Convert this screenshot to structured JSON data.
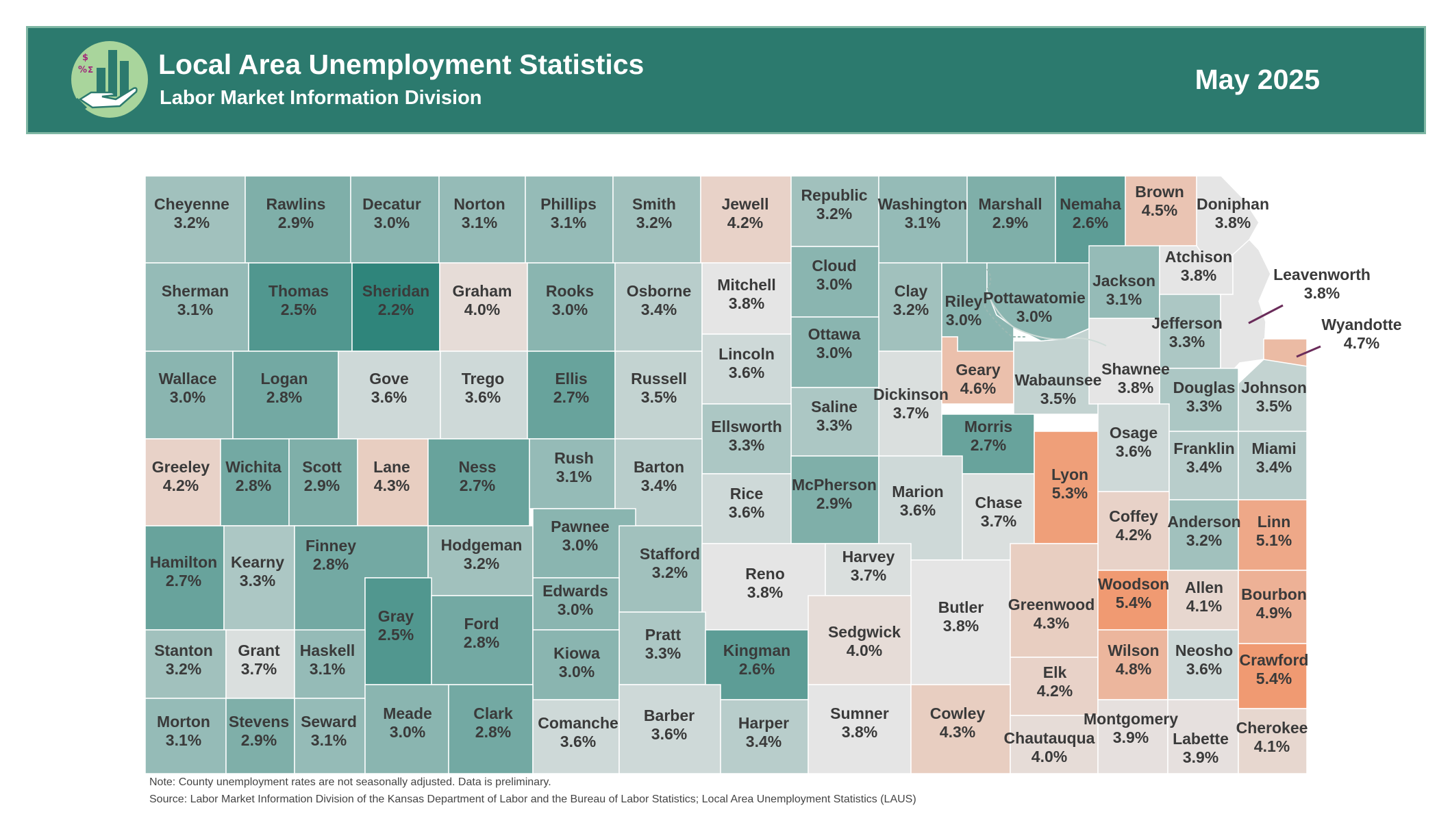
{
  "header": {
    "title": "Local Area Unemployment Statistics",
    "subtitle": "Labor Market Information Division",
    "period": "May 2025",
    "logo_icon": "money-hand-bar-chart-icon",
    "colors": {
      "banner": "#2c7a6e",
      "banner_border": "#7fb7a4",
      "logo_circle": "#a9d59c"
    }
  },
  "map": {
    "state": "Kansas",
    "value_unit": "%",
    "color_scale": {
      "low": "#2f857b",
      "mid": "#e5e5e5",
      "high": "#f09a72",
      "min": 2.2,
      "mid_value": 3.8,
      "max": 5.4
    },
    "counties": [
      {
        "name": "Cheyenne",
        "rate": "3.2%"
      },
      {
        "name": "Rawlins",
        "rate": "2.9%"
      },
      {
        "name": "Decatur",
        "rate": "3.0%"
      },
      {
        "name": "Norton",
        "rate": "3.1%"
      },
      {
        "name": "Phillips",
        "rate": "3.1%"
      },
      {
        "name": "Smith",
        "rate": "3.2%"
      },
      {
        "name": "Jewell",
        "rate": "4.2%"
      },
      {
        "name": "Republic",
        "rate": "3.2%"
      },
      {
        "name": "Washington",
        "rate": "3.1%"
      },
      {
        "name": "Marshall",
        "rate": "2.9%"
      },
      {
        "name": "Nemaha",
        "rate": "2.6%"
      },
      {
        "name": "Brown",
        "rate": "4.5%"
      },
      {
        "name": "Doniphan",
        "rate": "3.8%"
      },
      {
        "name": "Sherman",
        "rate": "3.1%"
      },
      {
        "name": "Thomas",
        "rate": "2.5%"
      },
      {
        "name": "Sheridan",
        "rate": "2.2%"
      },
      {
        "name": "Graham",
        "rate": "4.0%"
      },
      {
        "name": "Rooks",
        "rate": "3.0%"
      },
      {
        "name": "Osborne",
        "rate": "3.4%"
      },
      {
        "name": "Mitchell",
        "rate": "3.8%"
      },
      {
        "name": "Cloud",
        "rate": "3.0%"
      },
      {
        "name": "Clay",
        "rate": "3.2%"
      },
      {
        "name": "Riley",
        "rate": "3.0%"
      },
      {
        "name": "Pottawatomie",
        "rate": "3.0%"
      },
      {
        "name": "Jackson",
        "rate": "3.1%"
      },
      {
        "name": "Atchison",
        "rate": "3.8%"
      },
      {
        "name": "Jefferson",
        "rate": "3.3%"
      },
      {
        "name": "Leavenworth",
        "rate": "3.8%"
      },
      {
        "name": "Wyandotte",
        "rate": "4.7%"
      },
      {
        "name": "Wallace",
        "rate": "3.0%"
      },
      {
        "name": "Logan",
        "rate": "2.8%"
      },
      {
        "name": "Gove",
        "rate": "3.6%"
      },
      {
        "name": "Trego",
        "rate": "3.6%"
      },
      {
        "name": "Ellis",
        "rate": "2.7%"
      },
      {
        "name": "Russell",
        "rate": "3.5%"
      },
      {
        "name": "Lincoln",
        "rate": "3.6%"
      },
      {
        "name": "Ottawa",
        "rate": "3.0%"
      },
      {
        "name": "Dickinson",
        "rate": "3.7%"
      },
      {
        "name": "Geary",
        "rate": "4.6%"
      },
      {
        "name": "Wabaunsee",
        "rate": "3.5%"
      },
      {
        "name": "Shawnee",
        "rate": "3.8%"
      },
      {
        "name": "Douglas",
        "rate": "3.3%"
      },
      {
        "name": "Johnson",
        "rate": "3.5%"
      },
      {
        "name": "Saline",
        "rate": "3.3%"
      },
      {
        "name": "Ellsworth",
        "rate": "3.3%"
      },
      {
        "name": "Morris",
        "rate": "2.7%"
      },
      {
        "name": "Greeley",
        "rate": "4.2%"
      },
      {
        "name": "Wichita",
        "rate": "2.8%"
      },
      {
        "name": "Scott",
        "rate": "2.9%"
      },
      {
        "name": "Lane",
        "rate": "4.3%"
      },
      {
        "name": "Ness",
        "rate": "2.7%"
      },
      {
        "name": "Rush",
        "rate": "3.1%"
      },
      {
        "name": "Barton",
        "rate": "3.4%"
      },
      {
        "name": "Rice",
        "rate": "3.6%"
      },
      {
        "name": "McPherson",
        "rate": "2.9%"
      },
      {
        "name": "Marion",
        "rate": "3.6%"
      },
      {
        "name": "Chase",
        "rate": "3.7%"
      },
      {
        "name": "Lyon",
        "rate": "5.3%"
      },
      {
        "name": "Osage",
        "rate": "3.6%"
      },
      {
        "name": "Franklin",
        "rate": "3.4%"
      },
      {
        "name": "Miami",
        "rate": "3.4%"
      },
      {
        "name": "Hamilton",
        "rate": "2.7%"
      },
      {
        "name": "Kearny",
        "rate": "3.3%"
      },
      {
        "name": "Finney",
        "rate": "2.8%"
      },
      {
        "name": "Hodgeman",
        "rate": "3.2%"
      },
      {
        "name": "Pawnee",
        "rate": "3.0%"
      },
      {
        "name": "Stafford",
        "rate": "3.2%"
      },
      {
        "name": "Reno",
        "rate": "3.8%"
      },
      {
        "name": "Harvey",
        "rate": "3.7%"
      },
      {
        "name": "Coffey",
        "rate": "4.2%"
      },
      {
        "name": "Anderson",
        "rate": "3.2%"
      },
      {
        "name": "Linn",
        "rate": "5.1%"
      },
      {
        "name": "Gray",
        "rate": "2.5%"
      },
      {
        "name": "Ford",
        "rate": "2.8%"
      },
      {
        "name": "Edwards",
        "rate": "3.0%"
      },
      {
        "name": "Butler",
        "rate": "3.8%"
      },
      {
        "name": "Greenwood",
        "rate": "4.3%"
      },
      {
        "name": "Woodson",
        "rate": "5.4%"
      },
      {
        "name": "Allen",
        "rate": "4.1%"
      },
      {
        "name": "Bourbon",
        "rate": "4.9%"
      },
      {
        "name": "Stanton",
        "rate": "3.2%"
      },
      {
        "name": "Grant",
        "rate": "3.7%"
      },
      {
        "name": "Haskell",
        "rate": "3.1%"
      },
      {
        "name": "Pratt",
        "rate": "3.3%"
      },
      {
        "name": "Kiowa",
        "rate": "3.0%"
      },
      {
        "name": "Kingman",
        "rate": "2.6%"
      },
      {
        "name": "Sedgwick",
        "rate": "4.0%"
      },
      {
        "name": "Elk",
        "rate": "4.2%"
      },
      {
        "name": "Wilson",
        "rate": "4.8%"
      },
      {
        "name": "Neosho",
        "rate": "3.6%"
      },
      {
        "name": "Crawford",
        "rate": "5.4%"
      },
      {
        "name": "Morton",
        "rate": "3.1%"
      },
      {
        "name": "Stevens",
        "rate": "2.9%"
      },
      {
        "name": "Seward",
        "rate": "3.1%"
      },
      {
        "name": "Meade",
        "rate": "3.0%"
      },
      {
        "name": "Clark",
        "rate": "2.8%"
      },
      {
        "name": "Comanche",
        "rate": "3.6%"
      },
      {
        "name": "Barber",
        "rate": "3.6%"
      },
      {
        "name": "Harper",
        "rate": "3.4%"
      },
      {
        "name": "Sumner",
        "rate": "3.8%"
      },
      {
        "name": "Cowley",
        "rate": "4.3%"
      },
      {
        "name": "Chautauqua",
        "rate": "4.0%"
      },
      {
        "name": "Montgomery",
        "rate": "3.9%"
      },
      {
        "name": "Labette",
        "rate": "3.9%"
      },
      {
        "name": "Cherokee",
        "rate": "4.1%"
      }
    ]
  },
  "notes": {
    "note": "Note: County unemployment rates are not seasonally adjusted. Data is preliminary.",
    "source": "Source: Labor Market Information Division of the Kansas Department of Labor and the Bureau of Labor Statistics; Local Area Unemployment Statistics (LAUS)"
  }
}
